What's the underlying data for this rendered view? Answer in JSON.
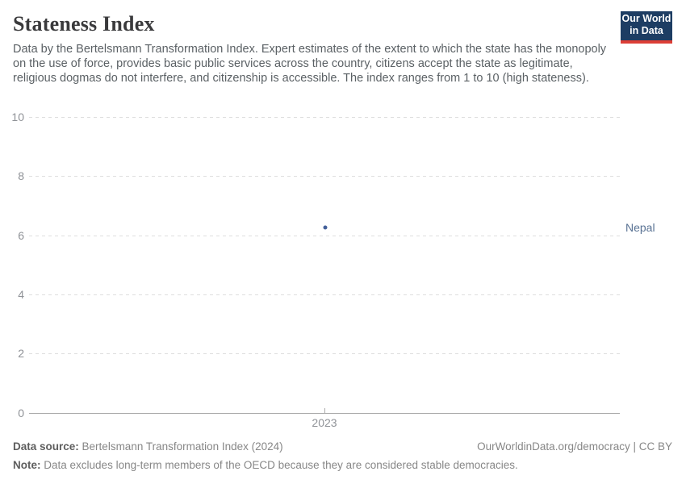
{
  "header": {
    "title": "Stateness Index",
    "subtitle": "Data by the Bertelsmann Transformation Index. Expert estimates of the extent to which the state has the monopoly on the use of force, provides basic public services across the country, citizens accept the state as legitimate, religious dogmas do not interfere, and citizenship is accessible. The index ranges from 1 to 10 (high stateness).",
    "logo": {
      "line1": "Our World",
      "line2": "in Data"
    }
  },
  "chart_data": {
    "type": "scatter",
    "x": [
      2023
    ],
    "series": [
      {
        "name": "Nepal",
        "values": [
          6.25
        ],
        "color": "#44609a",
        "label_color": "#5a7394"
      }
    ],
    "title": "Stateness Index",
    "xlabel": "",
    "ylabel": "",
    "ylim": [
      0,
      10
    ],
    "yticks": [
      0,
      2,
      4,
      6,
      8,
      10
    ],
    "xticks": [
      "2023"
    ],
    "grid": "horizontal-dashed",
    "legend_position": "right-of-point"
  },
  "footer": {
    "data_source_label": "Data source:",
    "data_source": "Bertelsmann Transformation Index (2024)",
    "attribution": "OurWorldinData.org/democracy | CC BY",
    "note_label": "Note:",
    "note": "Data excludes long-term members of the OECD because they are considered stable democracies."
  },
  "colors": {
    "logo_background": "#1d3d63",
    "logo_accent_bar": "#dc3e36",
    "gridline": "#dedede",
    "axis_line": "#ababab",
    "tick_label": "#8f9297",
    "title_text": "#3a3a3c",
    "subtitle_text": "#5b6165",
    "footer_text": "#878787"
  }
}
